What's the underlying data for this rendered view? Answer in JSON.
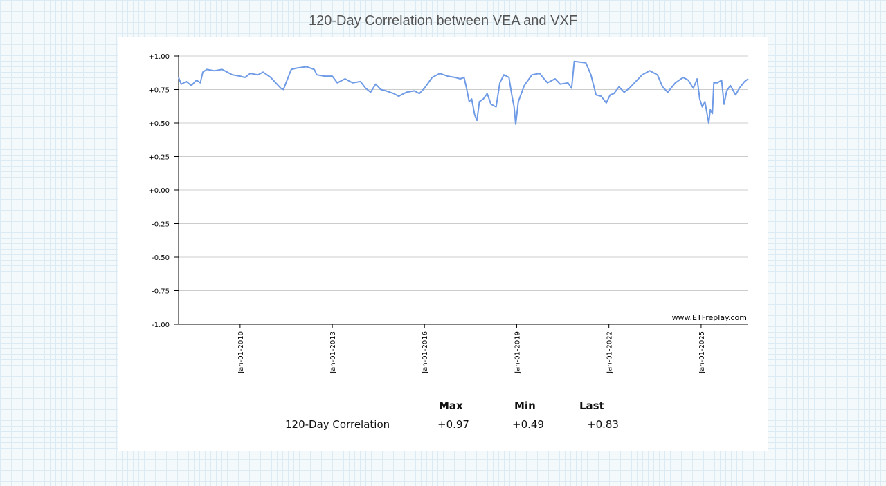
{
  "title": "120-Day Correlation between VEA and VXF",
  "watermark": "www.ETFreplay.com",
  "colors": {
    "line": "#6f9be6",
    "grid": "#cccccc",
    "axis": "#000000"
  },
  "stats": {
    "headers": {
      "max": "Max",
      "min": "Min",
      "last": "Last"
    },
    "row_label": "120-Day Correlation",
    "values": {
      "max": "+0.97",
      "min": "+0.49",
      "last": "+0.83"
    }
  },
  "chart_data": {
    "type": "line",
    "title": "120-Day Correlation between VEA and VXF",
    "xlabel": "",
    "ylabel": "",
    "ylim": [
      -1.0,
      1.0
    ],
    "xlim": [
      "2008-01-01",
      "2026-07-15"
    ],
    "grid": true,
    "y_ticks": [
      "+1.00",
      "+0.75",
      "+0.50",
      "+0.25",
      "+0.00",
      "-0.25",
      "-0.50",
      "-0.75",
      "-1.00"
    ],
    "y_tick_values": [
      1.0,
      0.75,
      0.5,
      0.25,
      0.0,
      -0.25,
      -0.5,
      -0.75,
      -1.0
    ],
    "x_ticks": [
      {
        "label": "Jan-01-2010",
        "date": "2010-01-01"
      },
      {
        "label": "Jan-01-2013",
        "date": "2013-01-01"
      },
      {
        "label": "Jan-01-2016",
        "date": "2016-01-01"
      },
      {
        "label": "Jan-01-2019",
        "date": "2019-01-01"
      },
      {
        "label": "Jan-01-2022",
        "date": "2022-01-01"
      },
      {
        "label": "Jan-01-2025",
        "date": "2025-01-01"
      }
    ],
    "series": [
      {
        "values": [
          [
            "2008-01-01",
            0.84
          ],
          [
            "2008-02-01",
            0.79
          ],
          [
            "2008-04-01",
            0.81
          ],
          [
            "2008-06-01",
            0.78
          ],
          [
            "2008-08-01",
            0.82
          ],
          [
            "2008-09-15",
            0.8
          ],
          [
            "2008-10-15",
            0.88
          ],
          [
            "2008-12-01",
            0.9
          ],
          [
            "2009-03-01",
            0.89
          ],
          [
            "2009-06-01",
            0.9
          ],
          [
            "2009-08-01",
            0.88
          ],
          [
            "2009-10-01",
            0.86
          ],
          [
            "2010-01-01",
            0.85
          ],
          [
            "2010-03-01",
            0.84
          ],
          [
            "2010-05-01",
            0.87
          ],
          [
            "2010-08-01",
            0.86
          ],
          [
            "2010-10-01",
            0.88
          ],
          [
            "2011-01-01",
            0.84
          ],
          [
            "2011-03-01",
            0.8
          ],
          [
            "2011-05-01",
            0.76
          ],
          [
            "2011-06-01",
            0.75
          ],
          [
            "2011-07-01",
            0.8
          ],
          [
            "2011-09-01",
            0.9
          ],
          [
            "2011-11-01",
            0.91
          ],
          [
            "2012-03-01",
            0.92
          ],
          [
            "2012-06-01",
            0.9
          ],
          [
            "2012-07-01",
            0.86
          ],
          [
            "2012-10-01",
            0.85
          ],
          [
            "2013-01-01",
            0.85
          ],
          [
            "2013-03-01",
            0.8
          ],
          [
            "2013-06-01",
            0.83
          ],
          [
            "2013-09-01",
            0.8
          ],
          [
            "2013-12-01",
            0.81
          ],
          [
            "2014-02-01",
            0.76
          ],
          [
            "2014-04-01",
            0.73
          ],
          [
            "2014-06-01",
            0.79
          ],
          [
            "2014-08-01",
            0.75
          ],
          [
            "2014-10-01",
            0.74
          ],
          [
            "2015-01-01",
            0.72
          ],
          [
            "2015-03-01",
            0.7
          ],
          [
            "2015-06-01",
            0.73
          ],
          [
            "2015-09-01",
            0.74
          ],
          [
            "2015-11-01",
            0.72
          ],
          [
            "2016-01-01",
            0.76
          ],
          [
            "2016-04-01",
            0.84
          ],
          [
            "2016-07-01",
            0.87
          ],
          [
            "2016-10-01",
            0.85
          ],
          [
            "2017-01-01",
            0.84
          ],
          [
            "2017-03-01",
            0.83
          ],
          [
            "2017-04-15",
            0.84
          ],
          [
            "2017-05-15",
            0.76
          ],
          [
            "2017-06-15",
            0.66
          ],
          [
            "2017-07-15",
            0.68
          ],
          [
            "2017-08-20",
            0.56
          ],
          [
            "2017-09-15",
            0.52
          ],
          [
            "2017-10-15",
            0.66
          ],
          [
            "2017-12-01",
            0.68
          ],
          [
            "2018-01-15",
            0.72
          ],
          [
            "2018-03-01",
            0.64
          ],
          [
            "2018-05-01",
            0.62
          ],
          [
            "2018-06-15",
            0.8
          ],
          [
            "2018-08-01",
            0.86
          ],
          [
            "2018-10-01",
            0.84
          ],
          [
            "2018-11-01",
            0.72
          ],
          [
            "2018-12-01",
            0.62
          ],
          [
            "2018-12-20",
            0.49
          ],
          [
            "2019-01-20",
            0.66
          ],
          [
            "2019-04-01",
            0.78
          ],
          [
            "2019-07-01",
            0.86
          ],
          [
            "2019-10-01",
            0.87
          ],
          [
            "2020-01-01",
            0.8
          ],
          [
            "2020-04-01",
            0.83
          ],
          [
            "2020-06-01",
            0.79
          ],
          [
            "2020-09-01",
            0.8
          ],
          [
            "2020-10-15",
            0.76
          ],
          [
            "2020-11-15",
            0.96
          ],
          [
            "2021-04-01",
            0.95
          ],
          [
            "2021-06-01",
            0.86
          ],
          [
            "2021-08-01",
            0.71
          ],
          [
            "2021-10-01",
            0.7
          ],
          [
            "2021-12-01",
            0.65
          ],
          [
            "2022-01-15",
            0.71
          ],
          [
            "2022-03-01",
            0.72
          ],
          [
            "2022-05-01",
            0.77
          ],
          [
            "2022-07-01",
            0.73
          ],
          [
            "2022-09-01",
            0.76
          ],
          [
            "2022-11-01",
            0.8
          ],
          [
            "2023-02-01",
            0.86
          ],
          [
            "2023-05-01",
            0.89
          ],
          [
            "2023-08-01",
            0.86
          ],
          [
            "2023-10-01",
            0.77
          ],
          [
            "2023-12-01",
            0.73
          ],
          [
            "2024-03-01",
            0.8
          ],
          [
            "2024-06-01",
            0.84
          ],
          [
            "2024-08-01",
            0.82
          ],
          [
            "2024-10-01",
            0.76
          ],
          [
            "2024-11-15",
            0.83
          ],
          [
            "2024-12-15",
            0.68
          ],
          [
            "2025-01-15",
            0.62
          ],
          [
            "2025-02-15",
            0.66
          ],
          [
            "2025-04-01",
            0.5
          ],
          [
            "2025-04-20",
            0.6
          ],
          [
            "2025-05-15",
            0.57
          ],
          [
            "2025-06-01",
            0.8
          ],
          [
            "2025-07-15",
            0.8
          ],
          [
            "2025-09-01",
            0.82
          ],
          [
            "2025-10-01",
            0.64
          ],
          [
            "2025-11-01",
            0.74
          ],
          [
            "2025-12-15",
            0.78
          ],
          [
            "2026-02-15",
            0.71
          ],
          [
            "2026-04-01",
            0.76
          ],
          [
            "2026-06-01",
            0.81
          ],
          [
            "2026-07-15",
            0.83
          ]
        ]
      }
    ]
  }
}
